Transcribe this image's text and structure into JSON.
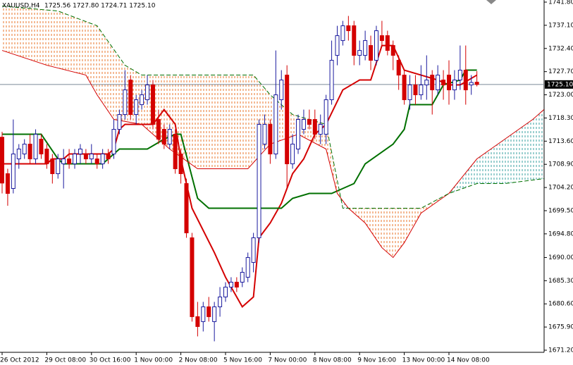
{
  "chart_data": {
    "type": "candlestick",
    "title": "XAUUSD,H4",
    "ohlc_text": "1725.56 1727.80 1724.71 1725.10",
    "up_color": "#1a1a9e",
    "down_color": "#d40000",
    "last_price": {
      "value": 1725.1,
      "label": "1725.10"
    },
    "categories": [
      "26 Oct 2012",
      null,
      null,
      null,
      null,
      null,
      null,
      null,
      "29 Oct 08:00",
      null,
      null,
      null,
      null,
      null,
      null,
      null,
      "30 Oct 16:00",
      null,
      null,
      null,
      null,
      null,
      null,
      null,
      "1 Nov 00:00",
      null,
      null,
      null,
      null,
      null,
      null,
      null,
      "2 Nov 08:00",
      null,
      null,
      null,
      null,
      null,
      null,
      null,
      "5 Nov 16:00",
      null,
      null,
      null,
      null,
      null,
      null,
      null,
      "7 Nov 00:00",
      null,
      null,
      null,
      null,
      null,
      null,
      null,
      "8 Nov 08:00",
      null,
      null,
      null,
      null,
      null,
      null,
      null,
      "9 Nov 16:00",
      null,
      null,
      null,
      null,
      null,
      null,
      null,
      "13 Nov 00:00",
      null,
      null,
      null,
      null,
      null,
      null,
      null,
      "14 Nov 08:00",
      null,
      null,
      null,
      null,
      null
    ],
    "open": [
      1714.4,
      1707,
      1704,
      1710,
      1711,
      1713,
      1710,
      1714,
      1712,
      1710,
      1707,
      1709,
      1710,
      1709,
      1711,
      1711,
      1710,
      1710,
      1709,
      1711,
      1711,
      1716,
      1719,
      1726,
      1719,
      1721,
      1722,
      1725,
      1718,
      1716,
      1713,
      1715,
      1711,
      1705,
      1694,
      1678,
      1677,
      1680,
      1677,
      1680,
      1682,
      1684,
      1685,
      1685,
      1686,
      1689,
      1694,
      1713,
      1717,
      1711,
      1722,
      1727,
      1709,
      1712,
      1716,
      1718,
      1718,
      1715,
      1715,
      1722,
      1731,
      1734,
      1737,
      1737,
      1731,
      1731,
      1733,
      1730,
      1735,
      1735,
      1733,
      1730,
      1727,
      1722,
      1725,
      1723,
      1725,
      1727,
      1724,
      1726,
      1727,
      1724,
      1726,
      1728,
      1725,
      1725.56
    ],
    "high": [
      1715.5,
      1708,
      1718,
      1713,
      1714,
      1715,
      1716,
      1715,
      1713,
      1711,
      1711,
      1712,
      1712,
      1712,
      1713,
      1712,
      1713,
      1711,
      1712,
      1712,
      1718,
      1720,
      1728,
      1727,
      1723,
      1724,
      1727,
      1726,
      1720,
      1717,
      1717,
      1716,
      1712,
      1706,
      1695,
      1681,
      1681,
      1682,
      1681,
      1684,
      1685,
      1686,
      1686,
      1688,
      1691,
      1695,
      1718,
      1719,
      1718,
      1732,
      1728,
      1729,
      1715,
      1719,
      1720,
      1720,
      1720,
      1719,
      1723,
      1734,
      1737,
      1738,
      1739,
      1738,
      1734,
      1736,
      1735,
      1737,
      1738,
      1736,
      1734,
      1731,
      1728,
      1727,
      1727,
      1729,
      1731,
      1728,
      1729,
      1728,
      1730,
      1728,
      1733,
      1733,
      1727,
      1727.8
    ],
    "low": [
      1703,
      1700.5,
      1703,
      1708,
      1710,
      1709,
      1709,
      1710,
      1708,
      1705,
      1706,
      1704,
      1708,
      1708,
      1709,
      1709,
      1709,
      1708,
      1708,
      1709,
      1710,
      1715,
      1718,
      1718,
      1717,
      1720,
      1721,
      1716,
      1713,
      1712,
      1712,
      1707,
      1705,
      1694,
      1677,
      1674,
      1675,
      1677,
      1673,
      1678,
      1681,
      1683,
      1683,
      1684,
      1685,
      1687,
      1693,
      1712,
      1709,
      1710,
      1720,
      1704,
      1708,
      1711,
      1715,
      1716,
      1714,
      1713,
      1713,
      1721,
      1729,
      1733,
      1734,
      1729,
      1729,
      1730,
      1728,
      1729,
      1733,
      1731,
      1728,
      1724,
      1721,
      1720,
      1721,
      1722,
      1722,
      1719,
      1723,
      1722,
      1721,
      1722,
      1724,
      1721,
      1723,
      1724.71
    ],
    "close": [
      1705.1,
      1703,
      1711,
      1712,
      1713,
      1710,
      1715,
      1711,
      1709,
      1707,
      1710,
      1710,
      1709,
      1711,
      1712,
      1710,
      1711,
      1709,
      1711,
      1710,
      1716,
      1719,
      1724,
      1719,
      1722,
      1723,
      1725,
      1717,
      1714,
      1713,
      1716,
      1708,
      1707,
      1695,
      1678,
      1676,
      1680,
      1678,
      1680,
      1682,
      1684,
      1685,
      1684,
      1687,
      1690,
      1694,
      1717,
      1717,
      1711,
      1723,
      1726,
      1709,
      1713,
      1718,
      1718,
      1717,
      1715,
      1717,
      1722,
      1730,
      1735,
      1737,
      1736,
      1731,
      1732,
      1734,
      1730,
      1736,
      1734,
      1732,
      1731,
      1727,
      1722,
      1725,
      1723,
      1725,
      1726,
      1724,
      1727,
      1725,
      1724,
      1726,
      1728,
      1724,
      1725.5,
      1725.1
    ],
    "lines": [
      {
        "color": "#d40000",
        "style": "solid",
        "width": 2,
        "x": [
          0,
          8,
          9,
          11,
          12,
          19,
          20,
          21,
          22,
          27,
          29,
          31,
          32,
          34,
          38,
          40,
          43,
          45,
          46,
          48,
          50,
          52,
          54,
          56,
          58,
          61,
          64,
          66,
          68,
          70,
          72,
          75,
          78,
          80,
          82,
          85
        ],
        "values": [
          1709,
          1709,
          1710,
          1710,
          1711,
          1711,
          1712,
          1716,
          1717,
          1717,
          1720,
          1717,
          1710,
          1700,
          1691,
          1686,
          1680,
          1682,
          1694,
          1697,
          1701,
          1707,
          1710,
          1715,
          1717,
          1724,
          1726,
          1726,
          1733,
          1733,
          1728,
          1727,
          1726,
          1725,
          1725,
          1727
        ]
      },
      {
        "color": "#007000",
        "style": "solid",
        "width": 2,
        "x": [
          0,
          7,
          10,
          11,
          18,
          19,
          21,
          26,
          29,
          31,
          32,
          35,
          37,
          50,
          52,
          55,
          59,
          61,
          63,
          65,
          70,
          72,
          73,
          77,
          79,
          82,
          83,
          85
        ],
        "values": [
          1715,
          1715,
          1710,
          1709,
          1709,
          1710,
          1712,
          1712,
          1714,
          1715,
          1715,
          1702,
          1700,
          1700,
          1702,
          1703,
          1703,
          1704,
          1705,
          1709,
          1713,
          1716,
          1721,
          1721,
          1725,
          1726,
          1728,
          1728
        ]
      },
      {
        "color": "#d40000",
        "style": "solid",
        "width": 1,
        "cloud": "a",
        "x": [
          0,
          8,
          15,
          17,
          20,
          25,
          30,
          35,
          40,
          44,
          48,
          53,
          58,
          60,
          62,
          65,
          68,
          70,
          72,
          75,
          80,
          85,
          90,
          95,
          97
        ],
        "values": [
          1732,
          1729,
          1727,
          1723,
          1718,
          1717,
          1712,
          1708,
          1708,
          1708,
          1713,
          1715,
          1712,
          1703,
          1700,
          1697,
          1692,
          1690,
          1693,
          1699,
          1703,
          1710,
          1714,
          1718,
          1720
        ]
      },
      {
        "color": "#007000",
        "style": "dashed",
        "width": 1,
        "cloud": "b",
        "x": [
          0,
          10,
          17,
          22,
          25,
          30,
          45,
          48,
          52,
          58,
          61,
          70,
          75,
          80,
          85,
          90,
          97
        ],
        "values": [
          1741,
          1740,
          1737,
          1729,
          1727,
          1727,
          1727,
          1723,
          1719,
          1717,
          1700,
          1700,
          1700,
          1703,
          1705,
          1705,
          1706
        ]
      }
    ],
    "ylim": [
      1671.2,
      1741.8
    ],
    "yticks": [
      {
        "value": 1741.8,
        "label": "1741.80"
      },
      {
        "value": 1737.1,
        "label": "1737.10"
      },
      {
        "value": 1732.4,
        "label": "1732.40"
      },
      {
        "value": 1727.7,
        "label": "1727.70"
      },
      {
        "value": 1723,
        "label": "1723.00"
      },
      {
        "value": 1718.3,
        "label": "1718.30"
      },
      {
        "value": 1713.6,
        "label": "1713.60"
      },
      {
        "value": 1708.9,
        "label": "1708.90"
      },
      {
        "value": 1704.2,
        "label": "1704.20"
      },
      {
        "value": 1699.5,
        "label": "1699.50"
      },
      {
        "value": 1694.8,
        "label": "1694.80"
      },
      {
        "value": 1690,
        "label": "1690.00"
      },
      {
        "value": 1685.3,
        "label": "1685.30"
      },
      {
        "value": 1680.6,
        "label": "1680.60"
      },
      {
        "value": 1675.9,
        "label": "1675.90"
      },
      {
        "value": 1671.2,
        "label": "1671.20"
      }
    ]
  }
}
